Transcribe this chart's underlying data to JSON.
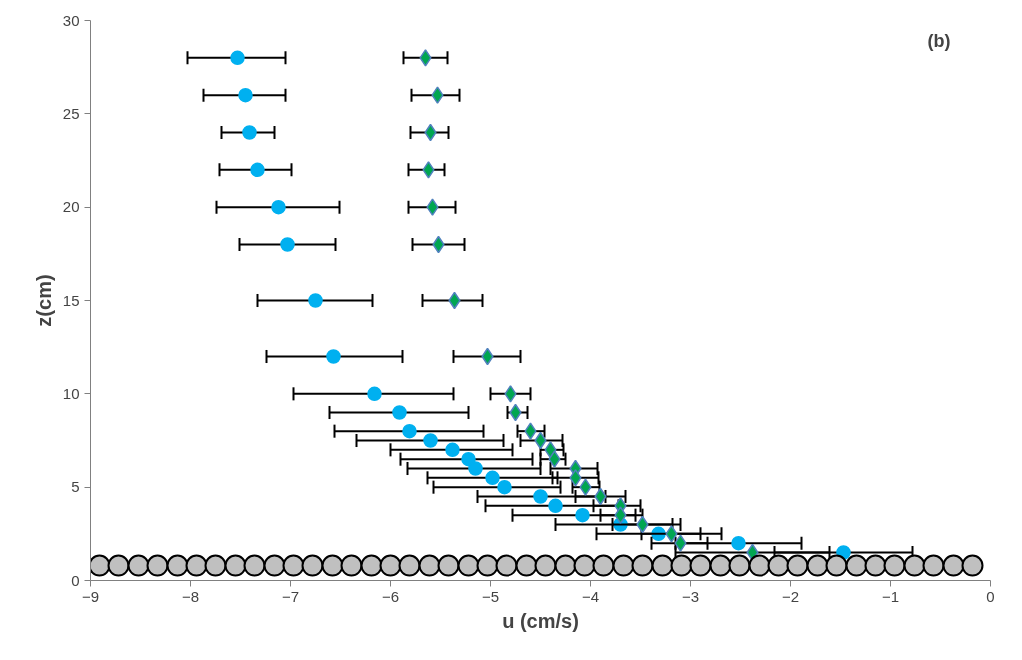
{
  "chart_data": {
    "type": "scatter",
    "xlabel": "u (cm/s)",
    "ylabel": "z(cm)",
    "annotations": [
      "(b)"
    ],
    "xlim": [
      -9,
      0
    ],
    "xticks": [
      -9,
      -8,
      -7,
      -6,
      -5,
      -4,
      -3,
      -2,
      -1,
      0
    ],
    "ylim": [
      0,
      30
    ],
    "yticks": [
      0,
      5,
      10,
      15,
      20,
      25,
      30
    ],
    "grid": false,
    "series": [
      {
        "color": "#00b0f0",
        "marker": "circle",
        "x": [
          -7.53,
          -7.45,
          -7.41,
          -7.33,
          -7.12,
          -7.03,
          -6.75,
          -6.57,
          -6.16,
          -5.91,
          -5.81,
          -5.6,
          -5.38,
          -5.22,
          -5.15,
          -4.98,
          -4.86,
          -4.5,
          -4.35,
          -4.08,
          -3.7,
          -3.32,
          -2.52,
          -1.47
        ],
        "values": [
          28,
          26,
          24,
          22,
          20,
          18,
          15,
          12,
          10,
          9,
          8,
          7.5,
          7,
          6.5,
          6,
          5.5,
          5,
          4.5,
          4,
          3.5,
          3,
          2.5,
          2,
          1.5
        ],
        "xerrors": [
          [
            -8.03,
            -7.05
          ],
          [
            -7.87,
            -7.05
          ],
          [
            -7.69,
            -7.16
          ],
          [
            -7.71,
            -6.99
          ],
          [
            -7.74,
            -6.51
          ],
          [
            -7.51,
            -6.55
          ],
          [
            -7.33,
            -6.18
          ],
          [
            -7.24,
            -5.88
          ],
          [
            -6.97,
            -5.37
          ],
          [
            -6.61,
            -5.22
          ],
          [
            -6.56,
            -5.07
          ],
          [
            -6.34,
            -4.87
          ],
          [
            -6.0,
            -4.78
          ],
          [
            -5.9,
            -4.58
          ],
          [
            -5.83,
            -4.5
          ],
          [
            -5.63,
            -4.33
          ],
          [
            -5.57,
            -4.3
          ],
          [
            -5.13,
            -3.85
          ],
          [
            -5.05,
            -3.72
          ],
          [
            -4.78,
            -3.55
          ],
          [
            -4.35,
            -3.1
          ],
          [
            -3.94,
            -2.69
          ],
          [
            -3.15,
            -1.89
          ],
          [
            -2.16,
            -0.78
          ]
        ]
      },
      {
        "color": "#00a651",
        "marker": "diamond",
        "x": [
          -5.65,
          -5.53,
          -5.6,
          -5.62,
          -5.58,
          -5.52,
          -5.36,
          -5.03,
          -4.8,
          -4.75,
          -4.6,
          -4.5,
          -4.4,
          -4.36,
          -4.15,
          -4.15,
          -4.05,
          -3.9,
          -3.7,
          -3.7,
          -3.48,
          -3.19,
          -3.1,
          -2.38
        ],
        "values": [
          28,
          26,
          24,
          22,
          20,
          18,
          15,
          12,
          10,
          9,
          8,
          7.5,
          7,
          6.5,
          6,
          5.5,
          5,
          4.5,
          4,
          3.5,
          3,
          2.5,
          2,
          1.5
        ],
        "xerrors": [
          [
            -5.87,
            -5.43
          ],
          [
            -5.79,
            -5.31
          ],
          [
            -5.8,
            -5.42
          ],
          [
            -5.82,
            -5.46
          ],
          [
            -5.82,
            -5.35
          ],
          [
            -5.78,
            -5.26
          ],
          [
            -5.68,
            -5.08
          ],
          [
            -5.37,
            -4.7
          ],
          [
            -5.0,
            -4.6
          ],
          [
            -4.83,
            -4.63
          ],
          [
            -4.73,
            -4.46
          ],
          [
            -4.7,
            -4.28
          ],
          [
            -4.5,
            -4.27
          ],
          [
            -4.5,
            -4.25
          ],
          [
            -4.4,
            -3.93
          ],
          [
            -4.38,
            -3.92
          ],
          [
            -4.18,
            -3.91
          ],
          [
            -4.15,
            -3.65
          ],
          [
            -3.97,
            -3.5
          ],
          [
            -3.9,
            -3.48
          ],
          [
            -3.78,
            -3.18
          ],
          [
            -3.49,
            -2.9
          ],
          [
            -3.39,
            -2.83
          ],
          [
            -3.15,
            -1.61
          ]
        ]
      },
      {
        "color": "#c0c0c0",
        "marker": "circle",
        "x": [
          -8.91,
          -8.72,
          -8.52,
          -8.33,
          -8.13,
          -7.94,
          -7.75,
          -7.55,
          -7.36,
          -7.16,
          -6.97,
          -6.78,
          -6.58,
          -6.39,
          -6.19,
          -6.0,
          -5.81,
          -5.61,
          -5.42,
          -5.22,
          -5.03,
          -4.84,
          -4.64,
          -4.45,
          -4.25,
          -4.06,
          -3.87,
          -3.67,
          -3.48,
          -3.28,
          -3.09,
          -2.9,
          -2.7,
          -2.51,
          -2.31,
          -2.12,
          -1.93,
          -1.73,
          -1.54,
          -1.34,
          -1.15,
          -0.96,
          -0.76,
          -0.57,
          -0.37,
          -0.18
        ],
        "values": [
          0.8,
          0.8,
          0.8,
          0.8,
          0.8,
          0.8,
          0.8,
          0.8,
          0.8,
          0.8,
          0.8,
          0.8,
          0.8,
          0.8,
          0.8,
          0.8,
          0.8,
          0.8,
          0.8,
          0.8,
          0.8,
          0.8,
          0.8,
          0.8,
          0.8,
          0.8,
          0.8,
          0.8,
          0.8,
          0.8,
          0.8,
          0.8,
          0.8,
          0.8,
          0.8,
          0.8,
          0.8,
          0.8,
          0.8,
          0.8,
          0.8,
          0.8,
          0.8,
          0.8,
          0.8,
          0.8
        ]
      }
    ]
  }
}
